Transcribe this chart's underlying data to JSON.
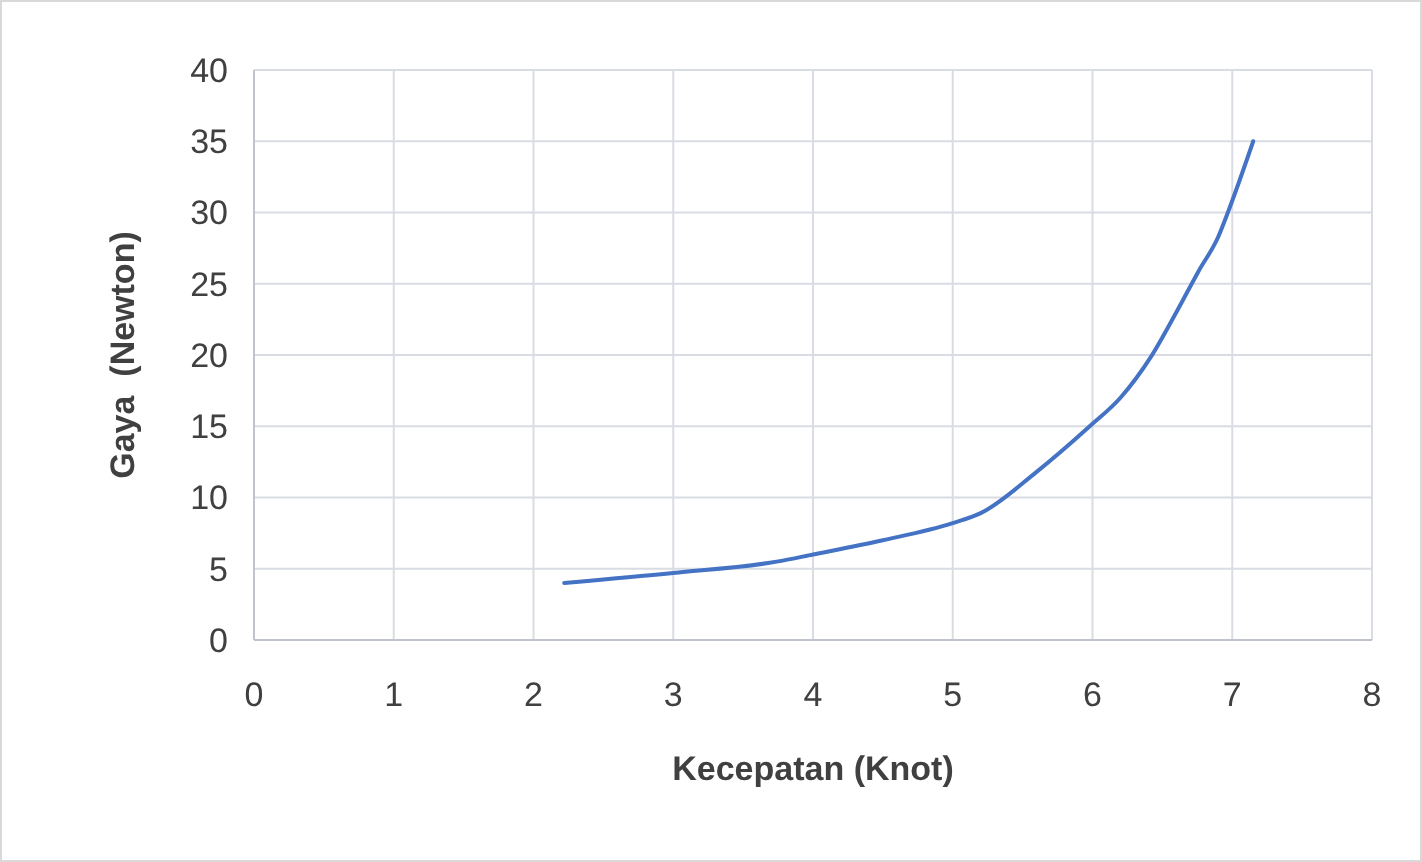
{
  "chart_data": {
    "type": "line",
    "xlabel": "Kecepatan (Knot)",
    "ylabel": "Gaya  (Newton)",
    "series": [
      {
        "color": "#4472c4",
        "x": [
          2.22,
          3,
          3.74,
          4,
          4.5,
          5,
          5.2,
          5.6,
          5.98,
          6.2,
          6.42,
          6.6,
          6.76,
          6.9,
          6.98,
          7.15
        ],
        "values": [
          4,
          4.7,
          5.5,
          6,
          7,
          8.2,
          8.9,
          11.8,
          15,
          17,
          19.9,
          23,
          25.9,
          28.3,
          30.3,
          35
        ]
      }
    ],
    "xlim": [
      0,
      8
    ],
    "xticks": [
      0,
      1,
      2,
      3,
      4,
      5,
      6,
      7,
      8
    ],
    "ylim": [
      0,
      40
    ],
    "yticks": [
      0,
      5,
      10,
      15,
      20,
      25,
      30,
      35,
      40
    ],
    "grid": true,
    "marker": "none",
    "line_style": "solid"
  }
}
